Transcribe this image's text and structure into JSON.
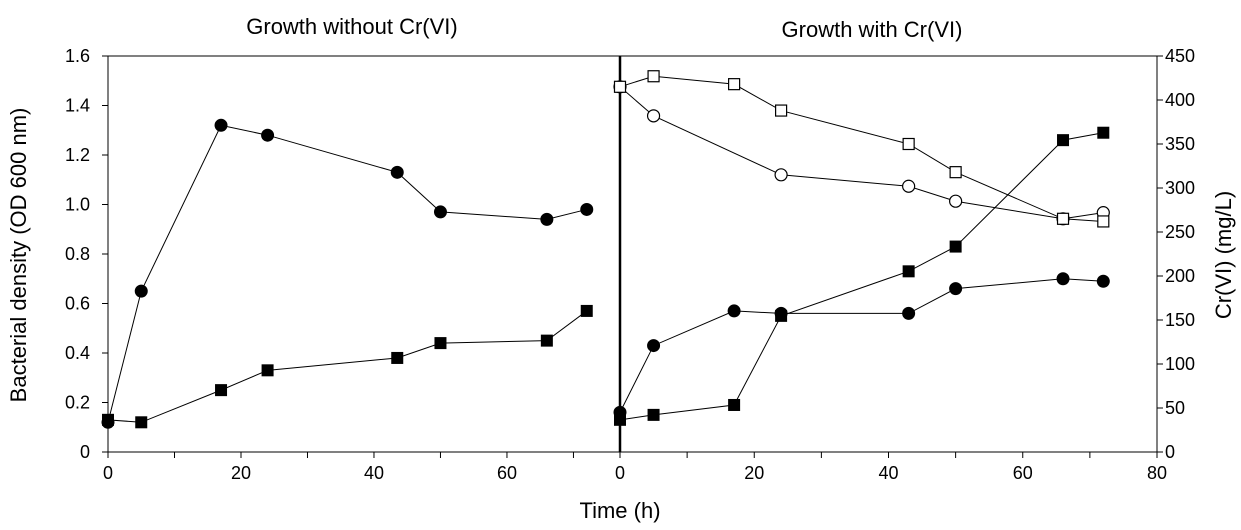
{
  "chart_data": [
    {
      "panel": "left",
      "type": "line",
      "title": "Growth without Cr(VI)",
      "ylabel": "Bacterial density (OD 600 nm)",
      "ylim": [
        0,
        1.6
      ],
      "yticks": [
        "0",
        "0.2",
        "0.4",
        "0.6",
        "0.8",
        "1.0",
        "1.2",
        "1.4",
        "1.6"
      ],
      "xlim": [
        0,
        77
      ],
      "xticks": [
        "0",
        "20",
        "40",
        "60"
      ],
      "grid": false,
      "series": [
        {
          "marker": "filled-circle",
          "axis": "left",
          "x": [
            0,
            5,
            17,
            24,
            43.5,
            50,
            66,
            72
          ],
          "y": [
            0.12,
            0.65,
            1.32,
            1.28,
            1.13,
            0.97,
            0.94,
            0.98
          ]
        },
        {
          "marker": "filled-square",
          "axis": "left",
          "x": [
            0,
            5,
            17,
            24,
            43.5,
            50,
            66,
            72
          ],
          "y": [
            0.13,
            0.12,
            0.25,
            0.33,
            0.38,
            0.44,
            0.45,
            0.57
          ]
        }
      ]
    },
    {
      "panel": "right",
      "type": "line",
      "title": "Growth with Cr(VI)",
      "ylabel": "Cr(VI) (mg/L)",
      "ylim": [
        0,
        1.6
      ],
      "y2lim": [
        0,
        450
      ],
      "y2ticks": [
        "0",
        "50",
        "100",
        "150",
        "200",
        "250",
        "300",
        "350",
        "400",
        "450"
      ],
      "xlim": [
        0,
        80
      ],
      "xticks": [
        "0",
        "20",
        "40",
        "60",
        "80"
      ],
      "grid": false,
      "series": [
        {
          "marker": "filled-circle",
          "axis": "left",
          "x": [
            0,
            5,
            17,
            24,
            43,
            50,
            66,
            72
          ],
          "y": [
            0.16,
            0.43,
            0.57,
            0.56,
            0.56,
            0.66,
            0.7,
            0.69
          ]
        },
        {
          "marker": "filled-square",
          "axis": "left",
          "x": [
            0,
            5,
            17,
            24,
            43,
            50,
            66,
            72
          ],
          "y": [
            0.13,
            0.15,
            0.19,
            0.55,
            0.73,
            0.83,
            1.26,
            1.29
          ]
        },
        {
          "marker": "open-circle",
          "axis": "right",
          "x": [
            0,
            5,
            24,
            43,
            50,
            66,
            72
          ],
          "y": [
            415,
            382,
            315,
            302,
            285,
            265,
            272
          ]
        },
        {
          "marker": "open-square",
          "axis": "right",
          "x": [
            0,
            5,
            17,
            24,
            43,
            50,
            66,
            72
          ],
          "y": [
            415,
            427,
            418,
            388,
            350,
            318,
            265,
            262
          ]
        }
      ]
    }
  ],
  "shared": {
    "xlabel": "Time (h)"
  },
  "colors": {
    "line": "#000000",
    "marker_fill": "#000000",
    "open_fill": "#ffffff"
  }
}
